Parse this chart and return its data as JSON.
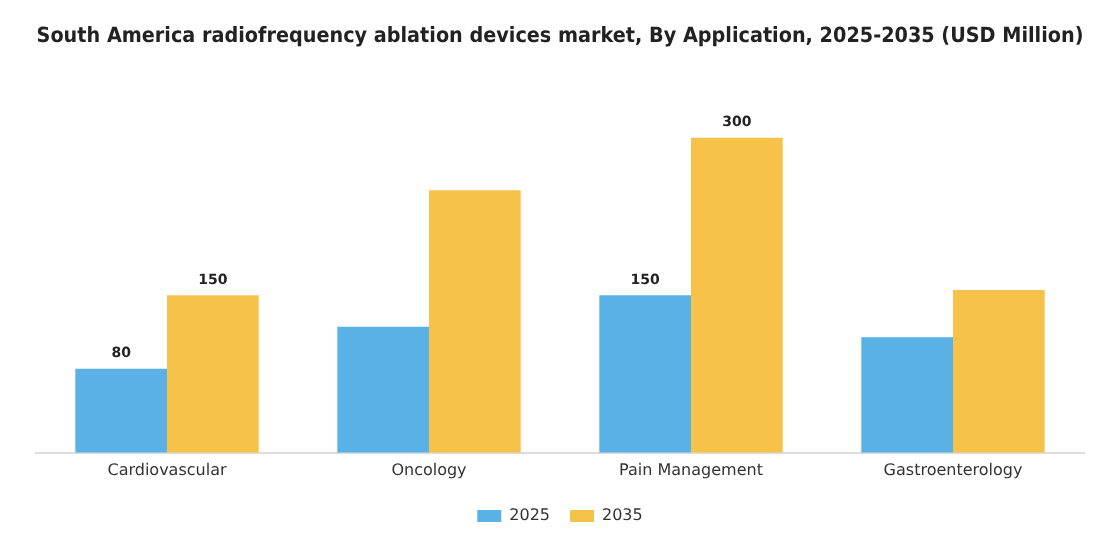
{
  "chart_data": {
    "type": "bar",
    "title": "South America radiofrequency ablation devices market, By Application, 2025-2035 (USD Million)",
    "categories": [
      "Cardiovascular",
      "Oncology",
      "Pain Management",
      "Gastroenterology"
    ],
    "series": [
      {
        "name": "2025",
        "color": "#5ab1e6",
        "values": [
          80,
          120,
          150,
          110
        ],
        "value_labels": [
          "80",
          null,
          "150",
          null
        ]
      },
      {
        "name": "2035",
        "color": "#f7c24a",
        "values": [
          150,
          250,
          300,
          155
        ],
        "value_labels": [
          "150",
          null,
          "300",
          null
        ]
      }
    ],
    "legend": "bottom",
    "grid": false
  }
}
